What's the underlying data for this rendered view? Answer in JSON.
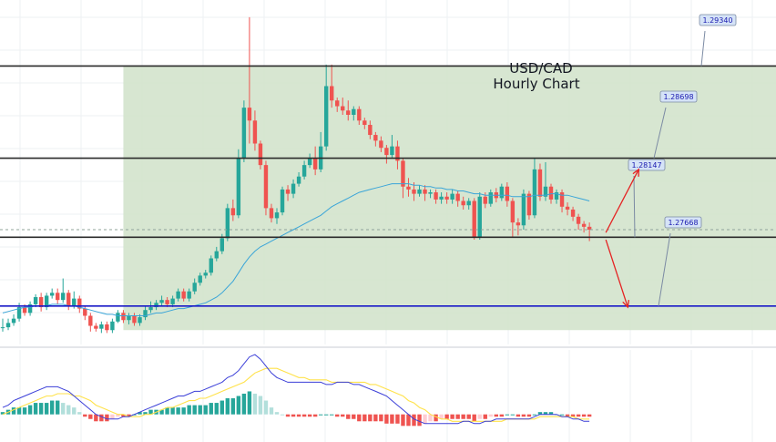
{
  "chart_data": {
    "type": "candlestick",
    "title": "USD/CAD",
    "subtitle": "Hourly Chart",
    "price_range": [
      1.274,
      1.298
    ],
    "levels": [
      {
        "value": 1.2934,
        "label": "1.29340",
        "color": "#2a2a2a"
      },
      {
        "value": 1.28698,
        "label": "1.28698",
        "color": "#2a2a2a"
      },
      {
        "value": 1.28147,
        "label": "1.28147",
        "color": "#2a2a2a"
      },
      {
        "value": 1.27668,
        "label": "1.27668",
        "color": "#1a1ac8"
      }
    ],
    "current_price": 1.282,
    "zone": {
      "from_index": 22,
      "to_index": 140,
      "low": 1.275,
      "high": 1.2934
    },
    "candles": [
      [
        1.2752,
        1.2752,
        1.2749,
        1.2758
      ],
      [
        1.2752,
        1.2755,
        1.275,
        1.2758
      ],
      [
        1.2755,
        1.2758,
        1.2753,
        1.2761
      ],
      [
        1.2758,
        1.2766,
        1.2756,
        1.2769
      ],
      [
        1.2766,
        1.2762,
        1.276,
        1.2768
      ],
      [
        1.2762,
        1.2768,
        1.276,
        1.277
      ],
      [
        1.2768,
        1.2773,
        1.2766,
        1.2775
      ],
      [
        1.2773,
        1.2766,
        1.2763,
        1.2776
      ],
      [
        1.2766,
        1.2774,
        1.2764,
        1.2776
      ],
      [
        1.2774,
        1.2776,
        1.2772,
        1.2779
      ],
      [
        1.2776,
        1.2771,
        1.2768,
        1.2779
      ],
      [
        1.2771,
        1.2776,
        1.2769,
        1.2786
      ],
      [
        1.2776,
        1.2767,
        1.2764,
        1.2778
      ],
      [
        1.2767,
        1.2772,
        1.2765,
        1.2777
      ],
      [
        1.2772,
        1.2765,
        1.2762,
        1.2774
      ],
      [
        1.2765,
        1.276,
        1.2757,
        1.2767
      ],
      [
        1.276,
        1.2753,
        1.2749,
        1.2762
      ],
      [
        1.2753,
        1.2751,
        1.2749,
        1.2755
      ],
      [
        1.2751,
        1.2754,
        1.2748,
        1.2756
      ],
      [
        1.2754,
        1.275,
        1.2748,
        1.2756
      ],
      [
        1.275,
        1.2756,
        1.2748,
        1.2758
      ],
      [
        1.2756,
        1.2762,
        1.2755,
        1.2764
      ],
      [
        1.2762,
        1.2757,
        1.2755,
        1.2764
      ],
      [
        1.2757,
        1.276,
        1.2754,
        1.2762
      ],
      [
        1.276,
        1.2755,
        1.2753,
        1.2762
      ],
      [
        1.2755,
        1.2759,
        1.2753,
        1.2761
      ],
      [
        1.2759,
        1.2764,
        1.2757,
        1.2767
      ],
      [
        1.2764,
        1.2766,
        1.2762,
        1.277
      ],
      [
        1.2766,
        1.2769,
        1.2764,
        1.2771
      ],
      [
        1.2769,
        1.2771,
        1.2767,
        1.2774
      ],
      [
        1.2771,
        1.2768,
        1.2766,
        1.2773
      ],
      [
        1.2768,
        1.2772,
        1.2766,
        1.2774
      ],
      [
        1.2772,
        1.2777,
        1.277,
        1.2779
      ],
      [
        1.2777,
        1.2772,
        1.277,
        1.2779
      ],
      [
        1.2772,
        1.2777,
        1.277,
        1.2779
      ],
      [
        1.2777,
        1.2783,
        1.2775,
        1.2786
      ],
      [
        1.2783,
        1.2788,
        1.2781,
        1.279
      ],
      [
        1.2788,
        1.279,
        1.2786,
        1.2792
      ],
      [
        1.279,
        1.28,
        1.2788,
        1.2802
      ],
      [
        1.28,
        1.2805,
        1.2798,
        1.2808
      ],
      [
        1.2805,
        1.2814,
        1.2803,
        1.2817
      ],
      [
        1.2814,
        1.2835,
        1.2812,
        1.2838
      ],
      [
        1.2835,
        1.283,
        1.2826,
        1.2841
      ],
      [
        1.283,
        1.287,
        1.2828,
        1.2876
      ],
      [
        1.287,
        1.2905,
        1.2867,
        1.291
      ],
      [
        1.2905,
        1.2896,
        1.288,
        1.2968
      ],
      [
        1.2896,
        1.288,
        1.2875,
        1.2903
      ],
      [
        1.288,
        1.2865,
        1.2862,
        1.2882
      ],
      [
        1.2865,
        1.2835,
        1.283,
        1.2868
      ],
      [
        1.2835,
        1.2828,
        1.2825,
        1.2838
      ],
      [
        1.2828,
        1.2832,
        1.2824,
        1.2835
      ],
      [
        1.2832,
        1.2848,
        1.283,
        1.285
      ],
      [
        1.2848,
        1.2845,
        1.284,
        1.2851
      ],
      [
        1.2845,
        1.2852,
        1.2842,
        1.2855
      ],
      [
        1.2852,
        1.2857,
        1.285,
        1.286
      ],
      [
        1.2857,
        1.2865,
        1.2855,
        1.2868
      ],
      [
        1.2865,
        1.287,
        1.2863,
        1.2873
      ],
      [
        1.287,
        1.2862,
        1.2858,
        1.2878
      ],
      [
        1.2862,
        1.2878,
        1.286,
        1.2888
      ],
      [
        1.2878,
        1.292,
        1.2875,
        1.2935
      ],
      [
        1.292,
        1.291,
        1.2905,
        1.2935
      ],
      [
        1.291,
        1.2906,
        1.2902,
        1.2912
      ],
      [
        1.2906,
        1.2903,
        1.29,
        1.2912
      ],
      [
        1.2903,
        1.29,
        1.2896,
        1.291
      ],
      [
        1.29,
        1.2904,
        1.2896,
        1.2906
      ],
      [
        1.2904,
        1.2896,
        1.2893,
        1.2906
      ],
      [
        1.2896,
        1.2893,
        1.289,
        1.2898
      ],
      [
        1.2893,
        1.2886,
        1.2883,
        1.2896
      ],
      [
        1.2886,
        1.2882,
        1.2878,
        1.2888
      ],
      [
        1.2882,
        1.2877,
        1.2874,
        1.2885
      ],
      [
        1.2877,
        1.2872,
        1.2866,
        1.2879
      ],
      [
        1.2872,
        1.2878,
        1.287,
        1.2886
      ],
      [
        1.2878,
        1.2868,
        1.2862,
        1.2882
      ],
      [
        1.2868,
        1.285,
        1.2842,
        1.287
      ],
      [
        1.285,
        1.2848,
        1.2843,
        1.2856
      ],
      [
        1.2848,
        1.2845,
        1.284,
        1.2853
      ],
      [
        1.2845,
        1.2848,
        1.2843,
        1.2851
      ],
      [
        1.2848,
        1.2845,
        1.284,
        1.2851
      ],
      [
        1.2845,
        1.2846,
        1.2842,
        1.2848
      ],
      [
        1.2846,
        1.2841,
        1.2838,
        1.2848
      ],
      [
        1.2841,
        1.2843,
        1.2838,
        1.2846
      ],
      [
        1.2843,
        1.2841,
        1.2838,
        1.2846
      ],
      [
        1.2841,
        1.2845,
        1.2838,
        1.2848
      ],
      [
        1.2845,
        1.284,
        1.2836,
        1.2847
      ],
      [
        1.284,
        1.2837,
        1.2834,
        1.2843
      ],
      [
        1.2837,
        1.284,
        1.2834,
        1.2842
      ],
      [
        1.284,
        1.2815,
        1.2813,
        1.2842
      ],
      [
        1.2815,
        1.2843,
        1.2813,
        1.2846
      ],
      [
        1.2843,
        1.2838,
        1.2835,
        1.2846
      ],
      [
        1.2838,
        1.2846,
        1.2836,
        1.2848
      ],
      [
        1.2846,
        1.2842,
        1.2839,
        1.2849
      ],
      [
        1.2842,
        1.285,
        1.284,
        1.2852
      ],
      [
        1.285,
        1.284,
        1.2836,
        1.2853
      ],
      [
        1.284,
        1.2825,
        1.2815,
        1.2842
      ],
      [
        1.2825,
        1.2823,
        1.2816,
        1.2828
      ],
      [
        1.2823,
        1.2845,
        1.282,
        1.2848
      ],
      [
        1.2845,
        1.283,
        1.2827,
        1.2847
      ],
      [
        1.283,
        1.2862,
        1.2828,
        1.287
      ],
      [
        1.2862,
        1.2843,
        1.284,
        1.2866
      ],
      [
        1.2843,
        1.285,
        1.284,
        1.2867
      ],
      [
        1.285,
        1.2841,
        1.2838,
        1.2852
      ],
      [
        1.2841,
        1.2846,
        1.2838,
        1.2848
      ],
      [
        1.2846,
        1.2836,
        1.2832,
        1.2848
      ],
      [
        1.2836,
        1.2834,
        1.283,
        1.2839
      ],
      [
        1.2834,
        1.2829,
        1.2826,
        1.2836
      ],
      [
        1.2829,
        1.2824,
        1.282,
        1.2831
      ],
      [
        1.2824,
        1.2822,
        1.2818,
        1.2826
      ],
      [
        1.2822,
        1.282,
        1.2812,
        1.2825
      ]
    ],
    "ma_line": [
      1.2762,
      1.2763,
      1.2764,
      1.2765,
      1.2766,
      1.2766,
      1.2767,
      1.2767,
      1.2767,
      1.2768,
      1.2768,
      1.2768,
      1.2767,
      1.2767,
      1.2766,
      1.2765,
      1.2764,
      1.2763,
      1.2762,
      1.2761,
      1.2761,
      1.276,
      1.276,
      1.276,
      1.276,
      1.276,
      1.276,
      1.2761,
      1.2762,
      1.2762,
      1.2763,
      1.2764,
      1.2765,
      1.2765,
      1.2766,
      1.2767,
      1.2768,
      1.2769,
      1.2771,
      1.2773,
      1.2776,
      1.278,
      1.2784,
      1.279,
      1.2796,
      1.2801,
      1.2805,
      1.2808,
      1.281,
      1.2812,
      1.2814,
      1.2816,
      1.2818,
      1.282,
      1.2822,
      1.2824,
      1.2826,
      1.2828,
      1.283,
      1.2833,
      1.2836,
      1.2838,
      1.284,
      1.2842,
      1.2844,
      1.2846,
      1.2847,
      1.2848,
      1.2849,
      1.285,
      1.2851,
      1.2852,
      1.2852,
      1.2852,
      1.2852,
      1.2851,
      1.2851,
      1.285,
      1.285,
      1.2849,
      1.2849,
      1.2848,
      1.2848,
      1.2847,
      1.2847,
      1.2846,
      1.2845,
      1.2845,
      1.2844,
      1.2844,
      1.2844,
      1.2844,
      1.2844,
      1.2843,
      1.2843,
      1.2843,
      1.2843,
      1.2844,
      1.2844,
      1.2844,
      1.2845,
      1.2845,
      1.2844,
      1.2844,
      1.2843,
      1.2842,
      1.2841,
      1.284
    ],
    "arrows": [
      {
        "from": [
          110,
          1.2818
        ],
        "to": [
          116,
          1.2862
        ],
        "color": "#e52222"
      },
      {
        "from": [
          110,
          1.2813
        ],
        "to": [
          114,
          1.2766
        ],
        "color": "#e52222"
      }
    ],
    "macd": {
      "range": [
        -0.0012,
        0.0028
      ],
      "histogram": [
        0.0001,
        0.0002,
        0.0003,
        0.0003,
        0.0003,
        0.0004,
        0.0005,
        0.0005,
        0.0005,
        0.0006,
        0.0006,
        0.0005,
        0.0004,
        0.0003,
        0.0001,
        -0.0001,
        -0.0002,
        -0.0003,
        -0.0003,
        -0.0003,
        -0.0002,
        -0.0001,
        -0.0001,
        -0.0001,
        0.0,
        0.0001,
        0.0001,
        0.0002,
        0.0002,
        0.0002,
        0.0003,
        0.0003,
        0.0003,
        0.0003,
        0.0004,
        0.0004,
        0.0004,
        0.0004,
        0.0005,
        0.0005,
        0.0006,
        0.0007,
        0.0007,
        0.0008,
        0.0009,
        0.001,
        0.0009,
        0.0008,
        0.0006,
        0.0003,
        0.0001,
        0.0,
        -0.0001,
        -0.0001,
        -0.0001,
        -0.0001,
        -0.0001,
        -0.0001,
        0.0,
        0.0,
        0.0,
        -0.0001,
        -0.0001,
        -0.0002,
        -0.0002,
        -0.0003,
        -0.0003,
        -0.0003,
        -0.0003,
        -0.0003,
        -0.0004,
        -0.0004,
        -0.0004,
        -0.0005,
        -0.0005,
        -0.0005,
        -0.0005,
        -0.0004,
        -0.0003,
        -0.0003,
        -0.0002,
        -0.0002,
        -0.0002,
        -0.0002,
        -0.0002,
        -0.0002,
        -0.0003,
        -0.0002,
        -0.0002,
        -0.0001,
        -0.0001,
        -0.0001,
        0.0,
        0.0,
        -0.0001,
        -0.0001,
        -0.0001,
        0.0,
        0.0001,
        0.0001,
        0.0001,
        0.0,
        0.0,
        -0.0001,
        -0.0001,
        -0.0001,
        -0.0001,
        -0.0001
      ],
      "macd_line": [
        0.0003,
        0.0004,
        0.0006,
        0.0007,
        0.0008,
        0.0009,
        0.001,
        0.0011,
        0.0012,
        0.0012,
        0.0012,
        0.0011,
        0.001,
        0.0008,
        0.0006,
        0.0004,
        0.0002,
        0.0,
        -0.0001,
        -0.0002,
        -0.0002,
        -0.0002,
        -0.0001,
        -0.0001,
        0.0,
        0.0001,
        0.0002,
        0.0003,
        0.0004,
        0.0005,
        0.0006,
        0.0007,
        0.0008,
        0.0008,
        0.0009,
        0.001,
        0.001,
        0.0011,
        0.0012,
        0.0013,
        0.0014,
        0.0016,
        0.0017,
        0.0019,
        0.0022,
        0.0025,
        0.0026,
        0.0024,
        0.0021,
        0.0018,
        0.0016,
        0.0015,
        0.0014,
        0.0014,
        0.0014,
        0.0014,
        0.0014,
        0.0014,
        0.0014,
        0.0013,
        0.0013,
        0.0014,
        0.0014,
        0.0014,
        0.0013,
        0.0013,
        0.0012,
        0.0011,
        0.001,
        0.0009,
        0.0008,
        0.0006,
        0.0004,
        0.0002,
        0.0,
        -0.0002,
        -0.0003,
        -0.0004,
        -0.0004,
        -0.0004,
        -0.0004,
        -0.0004,
        -0.0004,
        -0.0004,
        -0.0003,
        -0.0003,
        -0.0004,
        -0.0004,
        -0.0003,
        -0.0003,
        -0.0002,
        -0.0002,
        -0.0002,
        -0.0002,
        -0.0002,
        -0.0002,
        -0.0002,
        -0.0001,
        0.0,
        0.0,
        0.0,
        0.0,
        -0.0001,
        -0.0001,
        -0.0002,
        -0.0002,
        -0.0003,
        -0.0003
      ],
      "signal_line": [
        0.0,
        0.0001,
        0.0002,
        0.0003,
        0.0004,
        0.0005,
        0.0006,
        0.0007,
        0.0008,
        0.0008,
        0.0009,
        0.0009,
        0.0009,
        0.0008,
        0.0008,
        0.0007,
        0.0006,
        0.0004,
        0.0003,
        0.0002,
        0.0001,
        0.0,
        0.0,
        -0.0001,
        -0.0001,
        -0.0001,
        0.0,
        0.0,
        0.0001,
        0.0002,
        0.0003,
        0.0003,
        0.0004,
        0.0005,
        0.0006,
        0.0006,
        0.0007,
        0.0007,
        0.0008,
        0.0009,
        0.001,
        0.0011,
        0.0012,
        0.0013,
        0.0014,
        0.0016,
        0.0018,
        0.0019,
        0.002,
        0.002,
        0.002,
        0.0019,
        0.0018,
        0.0017,
        0.0016,
        0.0016,
        0.0015,
        0.0015,
        0.0015,
        0.0015,
        0.0014,
        0.0014,
        0.0014,
        0.0014,
        0.0014,
        0.0014,
        0.0014,
        0.0013,
        0.0013,
        0.0012,
        0.0011,
        0.001,
        0.0009,
        0.0008,
        0.0006,
        0.0005,
        0.0003,
        0.0002,
        0.0,
        -0.0001,
        -0.0002,
        -0.0002,
        -0.0003,
        -0.0003,
        -0.0003,
        -0.0003,
        -0.0003,
        -0.0003,
        -0.0003,
        -0.0003,
        -0.0003,
        -0.0003,
        -0.0002,
        -0.0002,
        -0.0002,
        -0.0002,
        -0.0002,
        -0.0002,
        -0.0001,
        -0.0001,
        -0.0001,
        -0.0001,
        -0.0001,
        -0.0001,
        -0.0001,
        -0.0002,
        -0.0002,
        -0.0002
      ]
    },
    "colors": {
      "up": "#26a69a",
      "down": "#ef5350",
      "zone": "#d3e3cc",
      "ma": "#3aa5d8",
      "macd_line": "#3b3fd8",
      "signal_line": "#ffe24a",
      "hist_pos": "#26a69a",
      "hist_pos_fading": "#b2dfdb",
      "hist_neg": "#ef5350",
      "hist_neg_fading": "#ffcdd2",
      "tag_fill": "#d5e3f7",
      "tag_stroke": "#7b8aa3",
      "tag_text": "#1a1ab0"
    }
  }
}
